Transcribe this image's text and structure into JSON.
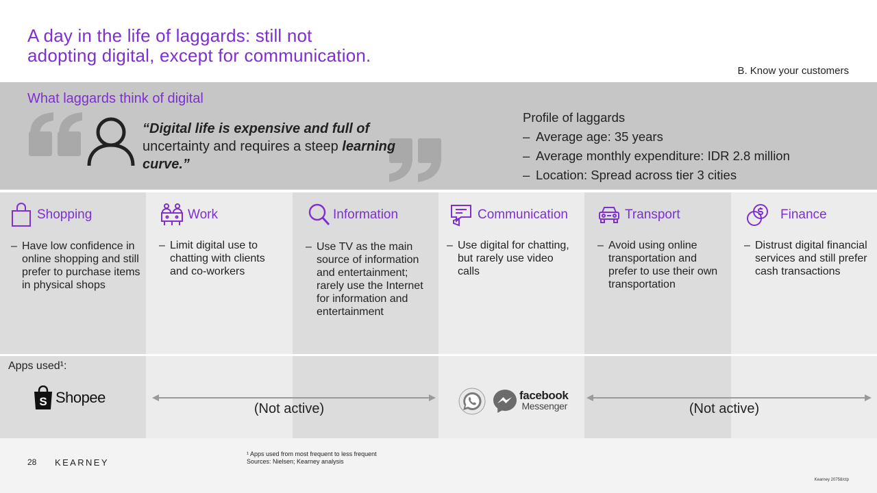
{
  "slide": {
    "title_line1": "A day in the life of laggards: still not",
    "title_line2": "adopting digital, except for communication.",
    "section_tag": "B. Know your customers",
    "accent_color": "#7d2fd0"
  },
  "quote_band": {
    "heading": "What laggards think of digital",
    "quote_part1": "“Digital life is expensive and full of",
    "quote_part2": " uncertainty and requires a steep ",
    "quote_part3": "learning curve.”",
    "open_quote_icon": "open-quote-icon",
    "close_quote_icon": "close-quote-icon",
    "person_icon": "person-icon"
  },
  "profile": {
    "heading": "Profile of laggards",
    "items": [
      "Average age: 35 years",
      "Average monthly expenditure: IDR 2.8 million",
      "Location: Spread across tier 3 cities"
    ]
  },
  "columns": [
    {
      "label": "Shopping",
      "icon": "shopping-bag-icon",
      "text": "Have low confidence in online shopping and still prefer to purchase items in physical shops"
    },
    {
      "label": "Work",
      "icon": "meeting-icon",
      "text": "Limit digital use to chatting with clients and co-workers"
    },
    {
      "label": "Information",
      "icon": "search-icon",
      "text": "Use TV as the main source of information and entertainment; rarely use the Internet for information and entertainment"
    },
    {
      "label": "Communication",
      "icon": "chat-megaphone-icon",
      "text": "Use digital for chatting, but rarely use video calls"
    },
    {
      "label": "Transport",
      "icon": "car-icon",
      "text": "Avoid using online transportation and prefer to use their own transportation"
    },
    {
      "label": "Finance",
      "icon": "coins-icon",
      "text": "Distrust digital financial services and still prefer cash transactions"
    }
  ],
  "apps": {
    "label": "Apps used¹:",
    "shopee": "Shopee",
    "not_active_1": "(Not active)",
    "not_active_2": "(Not active)",
    "facebook": "facebook",
    "messenger": "Messenger"
  },
  "footer": {
    "page_number": "28",
    "brand": "KEARNEY",
    "note_1": "¹ Apps used from most frequent to less frequent",
    "note_2": "Sources: Nielsen; Kearney analysis",
    "doc_code": "Kearney 20758/ctp"
  }
}
